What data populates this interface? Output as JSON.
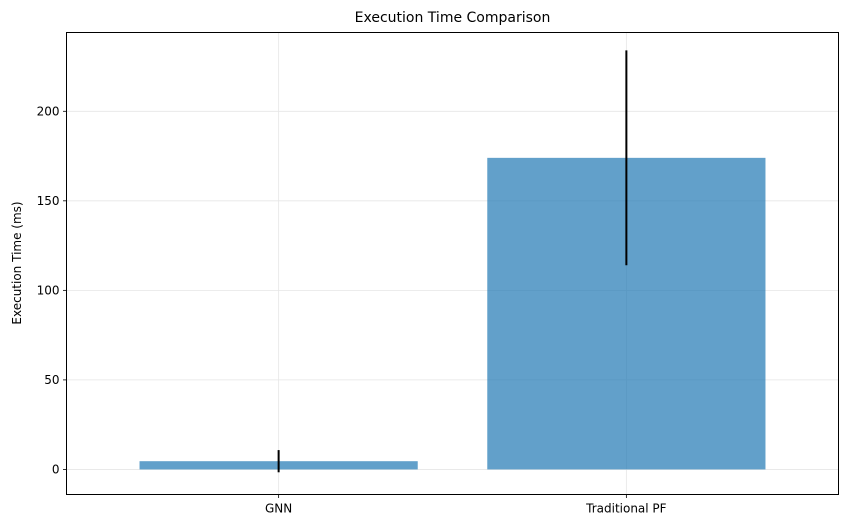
{
  "chart_data": {
    "type": "bar",
    "title": "Execution Time Comparison",
    "xlabel": "",
    "ylabel": "Execution Time (ms)",
    "categories": [
      "GNN",
      "Traditional PF"
    ],
    "values": [
      4.6,
      174
    ],
    "error": [
      6.2,
      60
    ],
    "ylim": [
      -14,
      244
    ],
    "yticks": [
      0,
      50,
      100,
      150,
      200
    ],
    "ytick_labels": [
      "0",
      "50",
      "100",
      "150",
      "200"
    ],
    "grid": true,
    "legend": "none",
    "colors": {
      "bar": "#1f77b4",
      "bar_opacity": 0.7,
      "error": "#000000",
      "grid": "#e6e6e6",
      "axis": "#000000"
    }
  }
}
